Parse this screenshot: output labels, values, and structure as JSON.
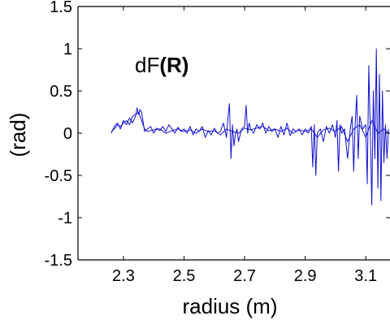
{
  "chart_data": {
    "type": "line",
    "title": "",
    "xlabel": "radius (m)",
    "ylabel": "(rad)",
    "annotation": {
      "prefix": "dF",
      "suffix": "(R)"
    },
    "xlim": [
      2.15,
      3.18
    ],
    "ylim": [
      -1.5,
      1.5
    ],
    "xticks": [
      2.3,
      2.5,
      2.7,
      2.9,
      3.1
    ],
    "yticks": [
      1.5,
      1,
      0.5,
      0,
      -0.5,
      -1,
      -1.5
    ],
    "xtick_labels": [
      "2.3",
      "2.5",
      "2.7",
      "2.9",
      "3.1"
    ],
    "ytick_labels": [
      "1.5",
      "1",
      "0.5",
      "0",
      "-0.5",
      "-1",
      "-1.5"
    ],
    "grid": false,
    "colors": {
      "line": "#1010d0",
      "axis": "#000000"
    },
    "series": [
      {
        "values_x": [
          2.26,
          2.27,
          2.28,
          2.29,
          2.3,
          2.31,
          2.32,
          2.33,
          2.34,
          2.345,
          2.35,
          2.355,
          2.36,
          2.37,
          2.38,
          2.39,
          2.4,
          2.41,
          2.42,
          2.43,
          2.44,
          2.45,
          2.46,
          2.47,
          2.48,
          2.49,
          2.5,
          2.51,
          2.52,
          2.53,
          2.54,
          2.55,
          2.56,
          2.57,
          2.58,
          2.59,
          2.6,
          2.61,
          2.62,
          2.63,
          2.64,
          2.645,
          2.65,
          2.655,
          2.66,
          2.665,
          2.67,
          2.675,
          2.68,
          2.69,
          2.7,
          2.705,
          2.71,
          2.715,
          2.72,
          2.73,
          2.74,
          2.75,
          2.76,
          2.77,
          2.78,
          2.79,
          2.8,
          2.81,
          2.82,
          2.83,
          2.84,
          2.85,
          2.86,
          2.87,
          2.88,
          2.89,
          2.9,
          2.91,
          2.92,
          2.925,
          2.93,
          2.935,
          2.94,
          2.95,
          2.96,
          2.97,
          2.98,
          2.99,
          3.0,
          3.005,
          3.01,
          3.015,
          3.02,
          3.03,
          3.04,
          3.05,
          3.055,
          3.06,
          3.065,
          3.07,
          3.075,
          3.08,
          3.09,
          3.1,
          3.105,
          3.11,
          3.115,
          3.12,
          3.125,
          3.13,
          3.135,
          3.14,
          3.145,
          3.15,
          3.155,
          3.16,
          3.165,
          3.17,
          3.175
        ],
        "values_y": [
          0.0,
          0.08,
          0.12,
          0.05,
          0.15,
          0.1,
          0.18,
          0.12,
          0.2,
          0.3,
          0.22,
          0.28,
          0.25,
          0.02,
          0.05,
          0.08,
          0.0,
          0.06,
          0.03,
          0.08,
          0.02,
          0.1,
          0.05,
          0.0,
          0.07,
          0.02,
          0.05,
          0.0,
          0.08,
          -0.02,
          0.05,
          0.02,
          0.08,
          -0.05,
          0.03,
          -0.02,
          0.06,
          0.0,
          0.02,
          0.12,
          -0.05,
          0.18,
          0.35,
          -0.3,
          0.1,
          -0.15,
          0.0,
          0.05,
          -0.1,
          0.05,
          0.08,
          0.33,
          0.0,
          0.12,
          0.05,
          0.0,
          0.1,
          0.05,
          0.12,
          0.0,
          0.08,
          0.02,
          0.05,
          -0.05,
          0.08,
          -0.02,
          0.12,
          -0.03,
          0.05,
          0.02,
          0.05,
          -0.02,
          0.05,
          0.0,
          0.08,
          -0.4,
          0.1,
          -0.5,
          0.0,
          0.05,
          -0.1,
          0.08,
          0.0,
          0.1,
          -0.05,
          0.15,
          -0.45,
          0.1,
          0.0,
          0.05,
          -0.3,
          0.08,
          0.2,
          -0.45,
          0.1,
          0.45,
          -0.3,
          0.2,
          0.05,
          0.1,
          -0.6,
          0.8,
          0.0,
          -0.85,
          0.5,
          -0.3,
          1.0,
          -0.65,
          0.7,
          -0.8,
          0.5,
          -0.35,
          0.1,
          -0.3,
          0.05
        ]
      },
      {
        "values_x": [
          2.26,
          2.27,
          2.28,
          2.29,
          2.3,
          2.31,
          2.32,
          2.33,
          2.34,
          2.35,
          2.36,
          2.37,
          2.38,
          2.4,
          2.42,
          2.44,
          2.46,
          2.48,
          2.5,
          2.52,
          2.54,
          2.56,
          2.58,
          2.6,
          2.62,
          2.64,
          2.66,
          2.68,
          2.7,
          2.72,
          2.74,
          2.76,
          2.78,
          2.8,
          2.82,
          2.84,
          2.86,
          2.88,
          2.9,
          2.92,
          2.94,
          2.96,
          2.98,
          3.0,
          3.02,
          3.04,
          3.06,
          3.08,
          3.1,
          3.12,
          3.14,
          3.16,
          3.175
        ],
        "values_y": [
          0.02,
          0.05,
          0.1,
          0.08,
          0.12,
          0.15,
          0.1,
          0.2,
          0.22,
          0.25,
          0.15,
          0.05,
          0.02,
          0.04,
          0.05,
          0.0,
          0.03,
          0.05,
          0.02,
          0.04,
          0.0,
          0.05,
          0.02,
          0.03,
          -0.02,
          0.05,
          0.02,
          0.0,
          0.06,
          0.04,
          0.06,
          0.08,
          0.03,
          0.05,
          0.02,
          0.06,
          0.0,
          0.04,
          0.02,
          0.05,
          -0.05,
          0.04,
          0.06,
          0.02,
          0.08,
          -0.1,
          0.05,
          0.1,
          -0.05,
          0.15,
          0.0,
          0.05,
          0.0
        ]
      }
    ]
  }
}
